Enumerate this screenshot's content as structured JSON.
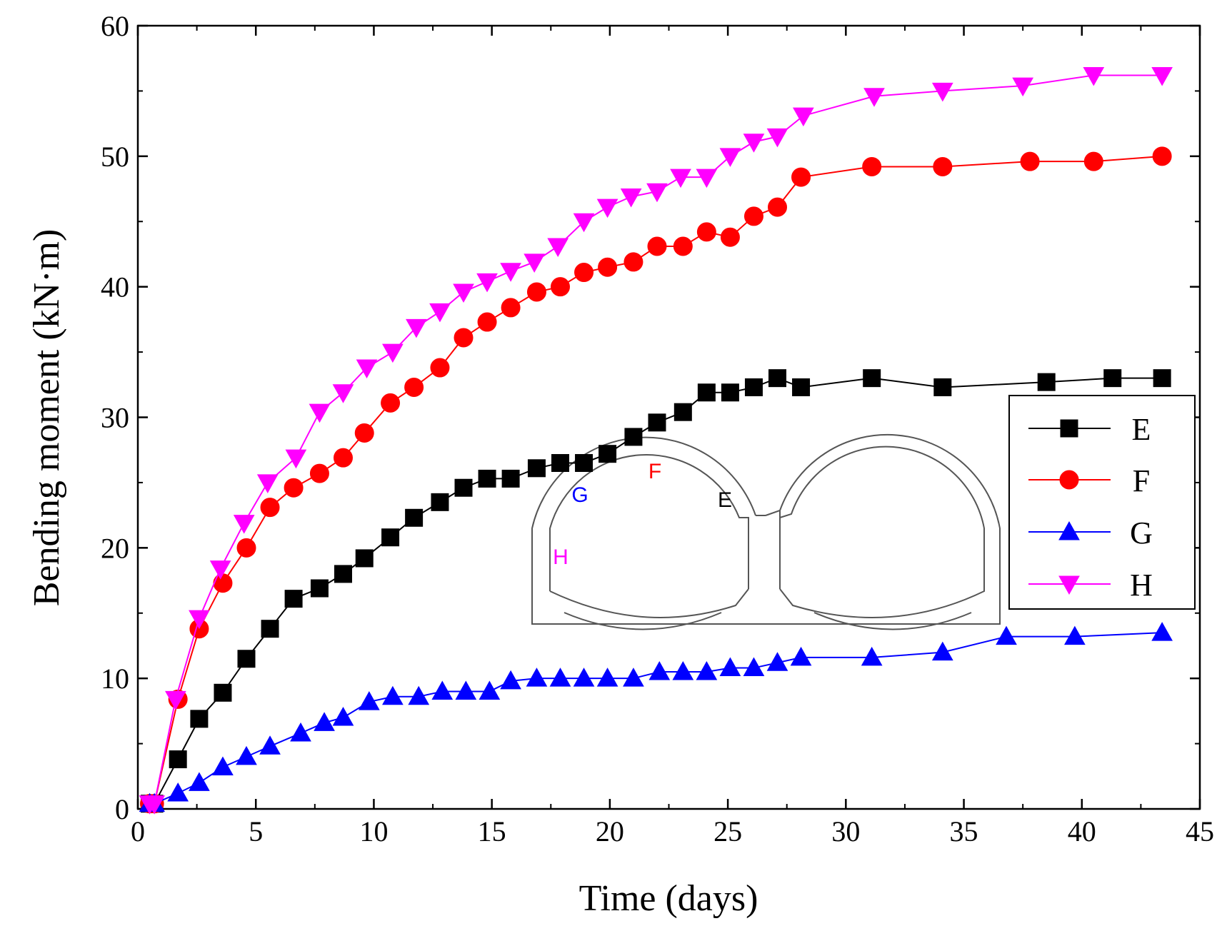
{
  "chart_data": {
    "type": "line",
    "xlabel": "Time (days)",
    "ylabel": "Bending moment (kN·m)",
    "xlim": [
      0,
      45
    ],
    "ylim": [
      0,
      60
    ],
    "xticks": [
      "0",
      "5",
      "10",
      "15",
      "20",
      "25",
      "30",
      "35",
      "40",
      "45"
    ],
    "yticks": [
      "0",
      "10",
      "20",
      "30",
      "40",
      "50",
      "60"
    ],
    "grid": false,
    "legend_position": "right",
    "series": [
      {
        "name": "E",
        "color": "#000000",
        "marker": "square",
        "x": [
          0.5,
          0.7,
          1.7,
          2.6,
          3.6,
          4.6,
          5.6,
          6.6,
          7.7,
          8.7,
          9.6,
          10.7,
          11.7,
          12.8,
          13.8,
          14.8,
          15.8,
          16.9,
          17.9,
          18.9,
          19.9,
          21.0,
          22.0,
          23.1,
          24.1,
          25.1,
          26.1,
          27.1,
          28.1,
          31.1,
          34.1,
          38.5,
          41.3,
          43.4
        ],
        "y": [
          0.4,
          0.4,
          3.8,
          6.9,
          8.9,
          11.5,
          13.8,
          16.1,
          16.9,
          18.0,
          19.2,
          20.8,
          22.3,
          23.5,
          24.6,
          25.3,
          25.3,
          26.1,
          26.5,
          26.5,
          27.2,
          28.5,
          29.6,
          30.4,
          31.9,
          31.9,
          32.3,
          33.0,
          32.3,
          33.0,
          32.3,
          32.7,
          33.0,
          33.0
        ]
      },
      {
        "name": "F",
        "color": "#ff0000",
        "marker": "circle",
        "x": [
          0.5,
          0.7,
          1.7,
          2.6,
          3.6,
          4.6,
          5.6,
          6.6,
          7.7,
          8.7,
          9.6,
          10.7,
          11.7,
          12.8,
          13.8,
          14.8,
          15.8,
          16.9,
          17.9,
          18.9,
          19.9,
          21.0,
          22.0,
          23.1,
          24.1,
          25.1,
          26.1,
          27.1,
          28.1,
          31.1,
          34.1,
          37.8,
          40.5,
          43.4
        ],
        "y": [
          0.4,
          0.4,
          8.4,
          13.8,
          17.3,
          20.0,
          23.1,
          24.6,
          25.7,
          26.9,
          28.8,
          31.1,
          32.3,
          33.8,
          36.1,
          37.3,
          38.4,
          39.6,
          40.0,
          41.1,
          41.5,
          41.9,
          43.1,
          43.1,
          44.2,
          43.8,
          45.4,
          46.1,
          48.4,
          49.2,
          49.2,
          49.6,
          49.6,
          50.0
        ]
      },
      {
        "name": "G",
        "color": "#0000ff",
        "marker": "triangle-up",
        "x": [
          0.5,
          0.7,
          1.7,
          2.6,
          3.6,
          4.6,
          5.6,
          6.9,
          7.9,
          8.7,
          9.8,
          10.8,
          11.9,
          12.9,
          13.9,
          14.9,
          15.8,
          16.9,
          17.9,
          18.9,
          19.9,
          21.0,
          22.1,
          23.1,
          24.1,
          25.1,
          26.1,
          27.1,
          28.1,
          31.1,
          34.1,
          36.8,
          39.7,
          43.4
        ],
        "y": [
          0.4,
          0.4,
          1.2,
          2.0,
          3.2,
          4.0,
          4.8,
          5.8,
          6.6,
          7.0,
          8.2,
          8.6,
          8.6,
          9.0,
          9.0,
          9.0,
          9.8,
          10.0,
          10.0,
          10.0,
          10.0,
          10.0,
          10.5,
          10.5,
          10.5,
          10.8,
          10.8,
          11.2,
          11.6,
          11.6,
          12.0,
          13.2,
          13.2,
          13.5
        ]
      },
      {
        "name": "H",
        "color": "#ff00ff",
        "marker": "triangle-down",
        "x": [
          0.5,
          0.7,
          1.6,
          2.6,
          3.5,
          4.5,
          5.5,
          6.7,
          7.7,
          8.7,
          9.7,
          10.8,
          11.8,
          12.8,
          13.8,
          14.8,
          15.8,
          16.8,
          17.8,
          18.9,
          19.9,
          20.9,
          22.0,
          23.0,
          24.1,
          25.1,
          26.1,
          27.1,
          28.2,
          31.2,
          34.1,
          37.5,
          40.5,
          43.4
        ],
        "y": [
          0.4,
          0.4,
          8.4,
          14.6,
          18.4,
          21.9,
          25.0,
          26.9,
          30.4,
          31.9,
          33.8,
          35.0,
          36.9,
          38.1,
          39.6,
          40.4,
          41.2,
          41.9,
          43.1,
          45.0,
          46.1,
          46.9,
          47.3,
          48.4,
          48.4,
          50.0,
          51.1,
          51.5,
          53.1,
          54.6,
          55.0,
          55.4,
          56.2,
          56.2
        ]
      }
    ],
    "inset": {
      "labels": [
        {
          "text": "G",
          "color": "#0000ff"
        },
        {
          "text": "F",
          "color": "#ff0000"
        },
        {
          "text": "E",
          "color": "#000000"
        },
        {
          "text": "H",
          "color": "#ff00ff"
        }
      ]
    }
  }
}
